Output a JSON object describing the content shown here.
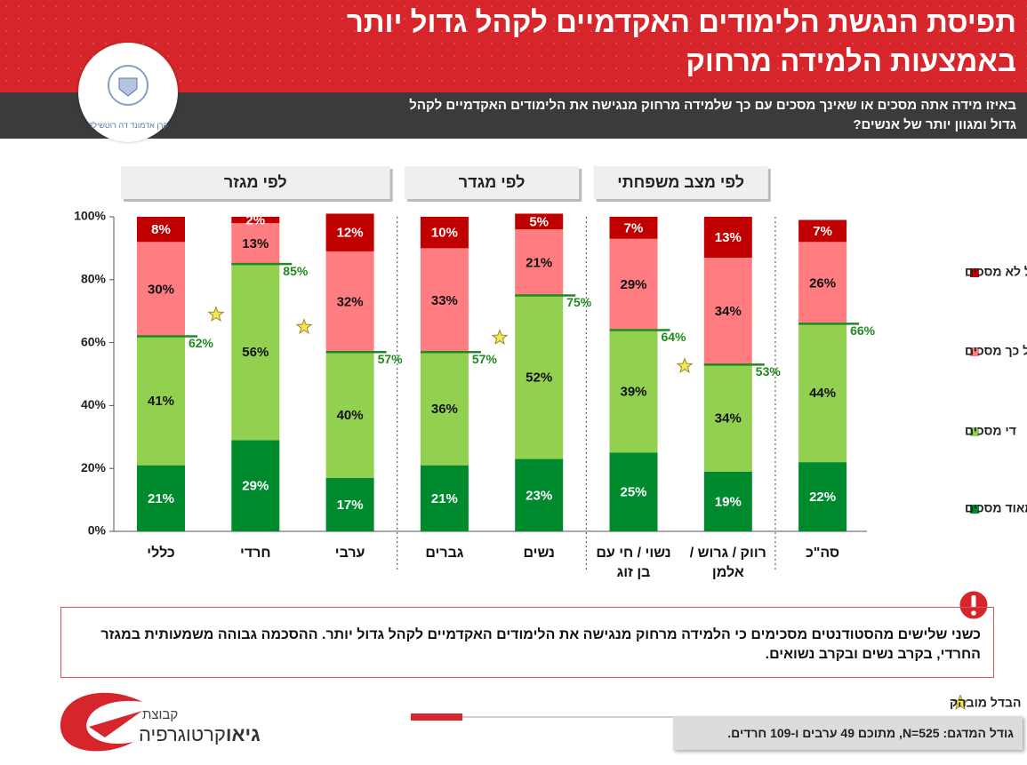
{
  "header": {
    "title_lines": [
      "תפיסת הנגשת הלימודים האקדמיים לקהל גדול יותר",
      "באמצעות הלמידה מרחוק"
    ],
    "question_lines": [
      "באיזו מידה אתה מסכים או שאינך מסכים עם כך שלמידה מרחוק מנגישה את הלימודים האקדמיים לקהל",
      "גדול ומגוון יותר של אנשים?"
    ],
    "foundation_logo": "קרן אדמונד דה רוטשילד"
  },
  "chart_data": {
    "type": "stacked_bar",
    "categories": [
      "כללי",
      "חרדי",
      "ערבי",
      "גברים",
      "נשים",
      "נשוי / חי עם בן זוג",
      "רווק / גרוש / אלמן",
      "סה\"כ"
    ],
    "groups": [
      {
        "label": "לפי מגזר",
        "from": 0,
        "to": 2
      },
      {
        "label": "לפי מגדר",
        "from": 3,
        "to": 4
      },
      {
        "label": "לפי מצב משפחתי",
        "from": 5,
        "to": 6
      }
    ],
    "series": [
      {
        "name": "מאוד מסכים",
        "color": "#008a2e",
        "values": [
          21,
          29,
          17,
          21,
          23,
          25,
          19,
          22
        ],
        "value_labels": [
          "21%",
          "29%",
          "17%",
          "21%",
          "23%",
          "25%",
          "19%",
          "22%"
        ]
      },
      {
        "name": "די מסכים",
        "color": "#92d050",
        "values": [
          41,
          56,
          40,
          36,
          52,
          39,
          34,
          44
        ],
        "value_labels": [
          "41%",
          "56%",
          "40%",
          "36%",
          "52%",
          "39%",
          "34%",
          "44%"
        ]
      },
      {
        "name": "לא כל כך מסכים",
        "color": "#ff7c80",
        "values": [
          30,
          13,
          32,
          33,
          21,
          29,
          34,
          26
        ],
        "value_labels": [
          "30%",
          "13%",
          "32%",
          "33%",
          "21%",
          "29%",
          "34%",
          "26%"
        ]
      },
      {
        "name": "כלל לא מסכים",
        "color": "#c00000",
        "values": [
          8,
          2,
          12,
          10,
          5,
          7,
          13,
          7
        ],
        "value_labels": [
          "8%",
          "2%",
          "12%",
          "10%",
          "5%",
          "7%",
          "13%",
          "7%"
        ]
      }
    ],
    "agree_totals": {
      "color": "#1f8a1f",
      "values": [
        62,
        85,
        57,
        57,
        75,
        64,
        53,
        66
      ],
      "value_labels": [
        "62%",
        "85%",
        "57%",
        "57%",
        "75%",
        "64%",
        "53%",
        "66%"
      ]
    },
    "ylim": [
      0,
      100
    ],
    "yticks": [
      {
        "value": 0,
        "label": "0%"
      },
      {
        "value": 20,
        "label": "20%"
      },
      {
        "value": 40,
        "label": "40%"
      },
      {
        "value": 60,
        "label": "60%"
      },
      {
        "value": 80,
        "label": "80%"
      },
      {
        "value": 100,
        "label": "100%"
      }
    ],
    "legend": "right",
    "significance_label": "הבדל מובהק"
  },
  "callout": "כשני שלישים מהסטודנטים מסכימים כי הלמידה מרחוק מנגישה את הלימודים האקדמיים לקהל גדול יותר. ההסכמה גבוהה משמעותית במגזר החרדי, בקרב נשים ובקרב נשואים.",
  "sample_note": "גודל המדגם: N=525, מתוכם 49 ערבים ו-109 חרדים.",
  "brand": {
    "prefix": "קבוצת",
    "bold": "גיאו",
    "rest": "קרטוגרפיה"
  }
}
